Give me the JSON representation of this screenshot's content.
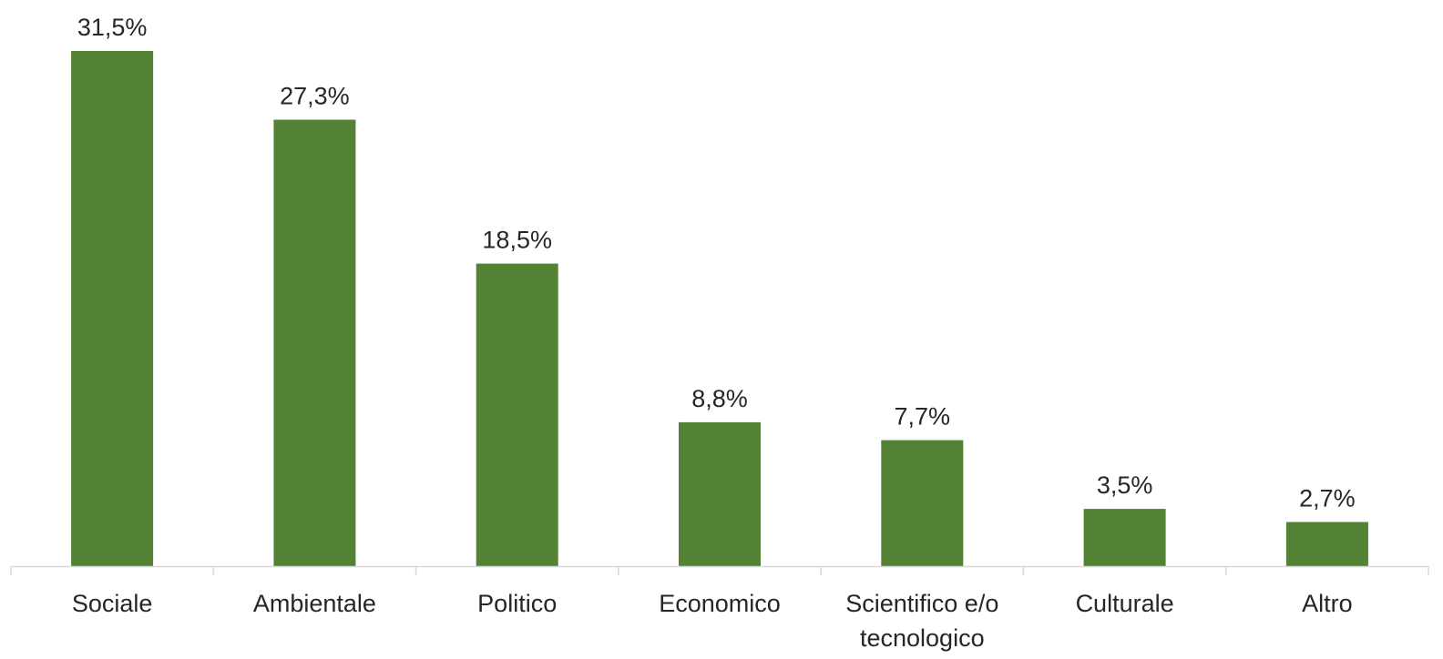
{
  "chart_data": {
    "type": "bar",
    "categories": [
      [
        "Sociale"
      ],
      [
        "Ambientale"
      ],
      [
        "Politico"
      ],
      [
        "Economico"
      ],
      [
        "Scientifico e/o",
        "tecnologico"
      ],
      [
        "Culturale"
      ],
      [
        "Altro"
      ]
    ],
    "values": [
      31.5,
      27.3,
      18.5,
      8.8,
      7.7,
      3.5,
      2.7
    ],
    "value_labels": [
      "31,5%",
      "27,3%",
      "18,5%",
      "8,8%",
      "7,7%",
      "3,5%",
      "2,7%"
    ],
    "unit": "%",
    "ylim": [
      0,
      31.5
    ],
    "grid": false,
    "legend": "none",
    "bar_color": "#548235",
    "axis_color": "#d9d9d9",
    "text_color": "#262626"
  }
}
